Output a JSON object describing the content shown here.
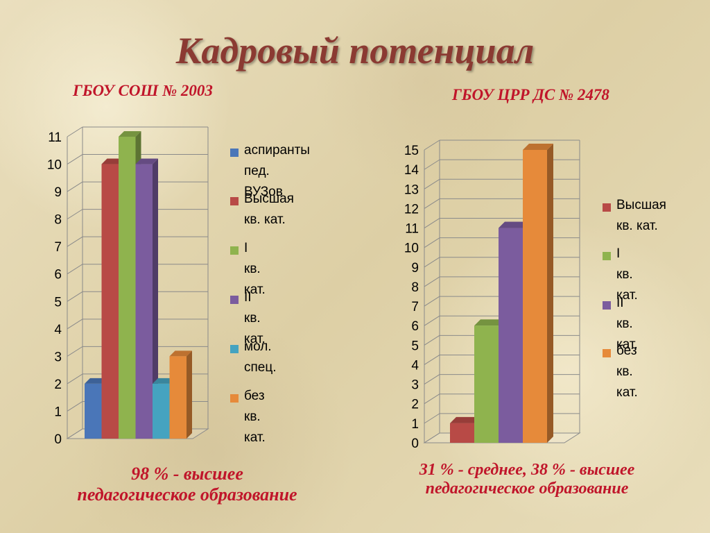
{
  "page": {
    "title": "Кадровый потенциал"
  },
  "chart_data": [
    {
      "type": "bar",
      "title": "ГБОУ СОШ № 2003",
      "caption_lines": [
        "98 % - высшее",
        "педагогическое образование"
      ],
      "ylim": [
        0,
        11
      ],
      "yticks": [
        "0",
        "1",
        "2",
        "3",
        "4",
        "5",
        "6",
        "7",
        "8",
        "9",
        "10",
        "11"
      ],
      "grid": true,
      "legend_position": "right",
      "series": [
        {
          "name": "аспиранты пед. ВУЗов",
          "label_lines": [
            "аспиранты",
            "пед. ВУЗов"
          ],
          "value": 2,
          "color": "#4a76b8"
        },
        {
          "name": "Высшая кв. кат.",
          "label_lines": [
            "Высшая",
            "кв. кат."
          ],
          "value": 10,
          "color": "#b84a46"
        },
        {
          "name": "I кв. кат.",
          "label_lines": [
            "I кв. кат."
          ],
          "value": 11,
          "color": "#8fb34e"
        },
        {
          "name": "II кв. кат.",
          "label_lines": [
            "II кв. кат."
          ],
          "value": 10,
          "color": "#7b5c9e"
        },
        {
          "name": "мол. спец.",
          "label_lines": [
            "мол. спец."
          ],
          "value": 2,
          "color": "#45a3c0"
        },
        {
          "name": "без кв. кат.",
          "label_lines": [
            "без кв.",
            "кат."
          ],
          "value": 3,
          "color": "#e68a3a"
        }
      ]
    },
    {
      "type": "bar",
      "title": "ГБОУ ЦРР ДС № 2478",
      "caption_lines": [
        "31 % - среднее, 38 % - высшее",
        "педагогическое образование"
      ],
      "ylim": [
        0,
        15
      ],
      "yticks": [
        "0",
        "1",
        "2",
        "3",
        "4",
        "5",
        "6",
        "7",
        "8",
        "9",
        "10",
        "11",
        "12",
        "13",
        "14",
        "15"
      ],
      "grid": true,
      "legend_position": "right",
      "series": [
        {
          "name": "Высшая кв. кат.",
          "label_lines": [
            "Высшая",
            "кв. кат."
          ],
          "value": 1,
          "color": "#b84a46"
        },
        {
          "name": "I кв. кат.",
          "label_lines": [
            "I кв. кат."
          ],
          "value": 6,
          "color": "#8fb34e"
        },
        {
          "name": "II кв. кат.",
          "label_lines": [
            "II кв. кат."
          ],
          "value": 11,
          "color": "#7b5c9e"
        },
        {
          "name": "без кв. кат.",
          "label_lines": [
            "без кв.",
            "кат."
          ],
          "value": 15,
          "color": "#e68a3a"
        }
      ]
    }
  ]
}
